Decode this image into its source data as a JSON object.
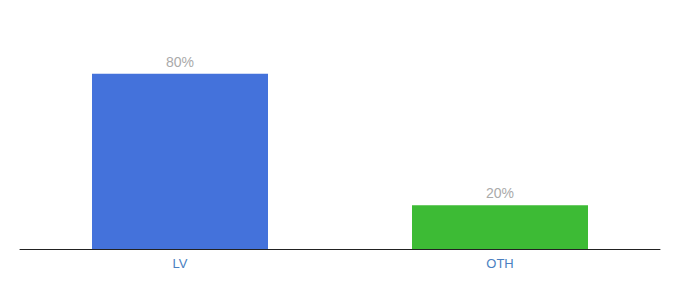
{
  "chart_data": {
    "type": "bar",
    "categories": [
      "LV",
      "OTH"
    ],
    "values": [
      80,
      20
    ],
    "value_labels": [
      "80%",
      "20%"
    ],
    "colors": [
      "#4472db",
      "#3dbb35"
    ],
    "ylim": [
      0,
      100
    ],
    "data_labels": true,
    "tick_labels": "x",
    "grid": false
  }
}
